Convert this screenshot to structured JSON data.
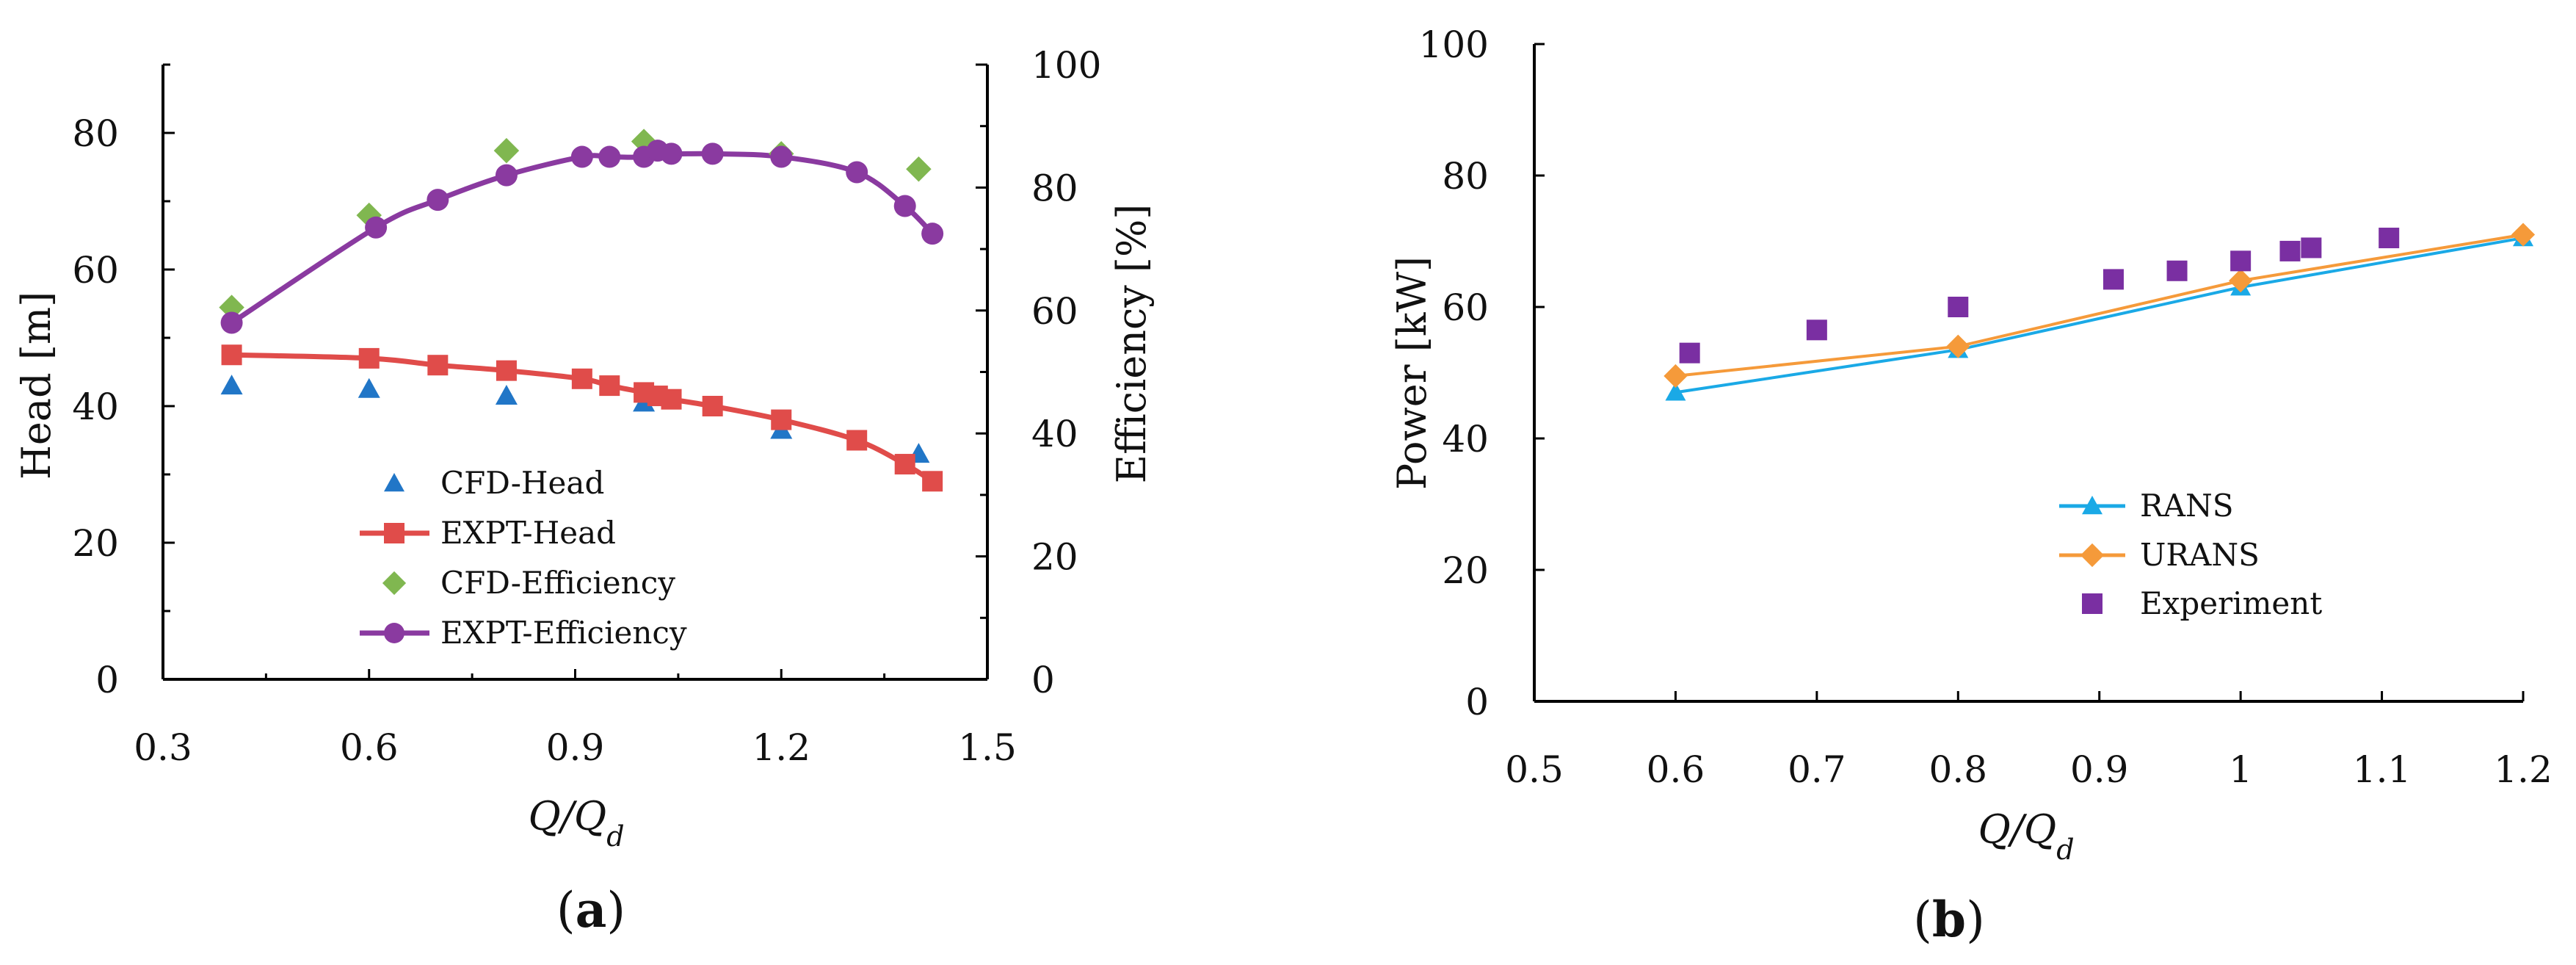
{
  "chart_data": [
    {
      "type": "line",
      "panel_label_open": "(",
      "panel_label": "a",
      "panel_label_close": ")",
      "xlabel_main": "Q/Q",
      "xlabel_sub": "d",
      "ylabel_left": "Head [m]",
      "ylabel_right": "Efficiency [%]",
      "xlim": [
        0.3,
        1.5
      ],
      "ylim_left": [
        0,
        90
      ],
      "ylim_right": [
        0,
        100
      ],
      "xticks": [
        0.3,
        0.6,
        0.9,
        1.2,
        1.5
      ],
      "xtick_labels": [
        "0.3",
        "0.6",
        "0.9",
        "1.2",
        "1.5"
      ],
      "yticks_left": [
        0,
        20,
        40,
        60,
        80
      ],
      "ytick_labels_left": [
        "0",
        "20",
        "40",
        "60",
        "80"
      ],
      "yticks_right": [
        0,
        20,
        40,
        60,
        80,
        100
      ],
      "ytick_labels_right": [
        "0",
        "20",
        "40",
        "60",
        "80",
        "100"
      ],
      "legend_position": "lower-middle",
      "series": [
        {
          "name": "CFD-Head",
          "axis": "left",
          "marker": "triangle",
          "line": false,
          "color": "#2176c7",
          "x": [
            0.4,
            0.6,
            0.8,
            1.0,
            1.2,
            1.4
          ],
          "y": [
            43,
            42.5,
            41.5,
            40.5,
            36.5,
            33
          ]
        },
        {
          "name": "EXPT-Head",
          "axis": "left",
          "marker": "square",
          "line": true,
          "color": "#e04c4a",
          "x": [
            0.4,
            0.6,
            0.7,
            0.8,
            0.91,
            0.95,
            1.0,
            1.02,
            1.04,
            1.1,
            1.2,
            1.31,
            1.38,
            1.42
          ],
          "y": [
            47.5,
            47,
            46,
            45.2,
            44,
            43,
            42,
            41.5,
            41,
            40,
            38,
            35,
            31.5,
            29
          ]
        },
        {
          "name": "CFD-Efficiency",
          "axis": "right",
          "marker": "diamond",
          "line": false,
          "color": "#80b750",
          "x": [
            0.4,
            0.6,
            0.8,
            1.0,
            1.2,
            1.4
          ],
          "y": [
            60.5,
            75.5,
            86,
            87.5,
            85.5,
            83
          ]
        },
        {
          "name": "EXPT-Efficiency",
          "axis": "right",
          "marker": "circle",
          "line": true,
          "color": "#8a3aa0",
          "x": [
            0.4,
            0.61,
            0.7,
            0.8,
            0.91,
            0.95,
            1.0,
            1.02,
            1.04,
            1.1,
            1.2,
            1.31,
            1.38,
            1.42
          ],
          "y": [
            58,
            73.5,
            78,
            82,
            85,
            85,
            85,
            86,
            85.5,
            85.5,
            85,
            82.5,
            77,
            72.5
          ]
        }
      ]
    },
    {
      "type": "line",
      "panel_label_open": "(",
      "panel_label": "b",
      "panel_label_close": ")",
      "xlabel_main": "Q/Q",
      "xlabel_sub": "d",
      "ylabel": "Power [kW]",
      "xlim": [
        0.5,
        1.2
      ],
      "ylim": [
        0,
        100
      ],
      "xticks": [
        0.5,
        0.6,
        0.7,
        0.8,
        0.9,
        1.0,
        1.1,
        1.2
      ],
      "xtick_labels": [
        "0.5",
        "0.6",
        "0.7",
        "0.8",
        "0.9",
        "1",
        "1.1",
        "1.2"
      ],
      "yticks": [
        0,
        20,
        40,
        60,
        80,
        100
      ],
      "ytick_labels": [
        "0",
        "20",
        "40",
        "60",
        "80",
        "100"
      ],
      "legend_position": "lower-right",
      "series": [
        {
          "name": "RANS",
          "marker": "triangle",
          "line": true,
          "color": "#1aa9e6",
          "x": [
            0.6,
            0.8,
            1.0,
            1.2
          ],
          "y": [
            47,
            53.5,
            63,
            70.5
          ]
        },
        {
          "name": "URANS",
          "marker": "diamond",
          "line": true,
          "color": "#f59a3a",
          "x": [
            0.6,
            0.8,
            1.0,
            1.2
          ],
          "y": [
            49.5,
            54,
            64,
            71
          ]
        },
        {
          "name": "Experiment",
          "marker": "square",
          "line": false,
          "color": "#7a2fa2",
          "x": [
            0.61,
            0.7,
            0.8,
            0.91,
            0.955,
            1.0,
            1.035,
            1.05,
            1.105
          ],
          "y": [
            53,
            56.5,
            60,
            64.2,
            65.5,
            67,
            68.5,
            69,
            70.5
          ]
        }
      ]
    }
  ]
}
